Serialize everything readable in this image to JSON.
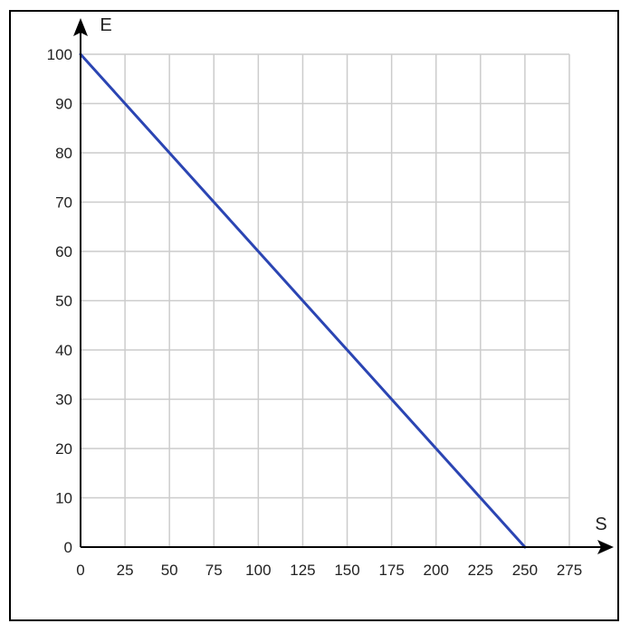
{
  "chart_data": {
    "type": "line",
    "title": "",
    "xlabel": "S",
    "ylabel": "E",
    "xlim": [
      0,
      275
    ],
    "ylim": [
      0,
      100
    ],
    "x_ticks": [
      0,
      25,
      50,
      75,
      100,
      125,
      150,
      175,
      200,
      225,
      250,
      275
    ],
    "y_ticks": [
      0,
      10,
      20,
      30,
      40,
      50,
      60,
      70,
      80,
      90,
      100
    ],
    "grid": true,
    "series": [
      {
        "x": [
          0,
          250
        ],
        "y": [
          100,
          0
        ],
        "color": "#2b45b3"
      }
    ]
  },
  "colors": {
    "grid": "#cccccc",
    "axis": "#000000",
    "line": "#2b45b3"
  }
}
